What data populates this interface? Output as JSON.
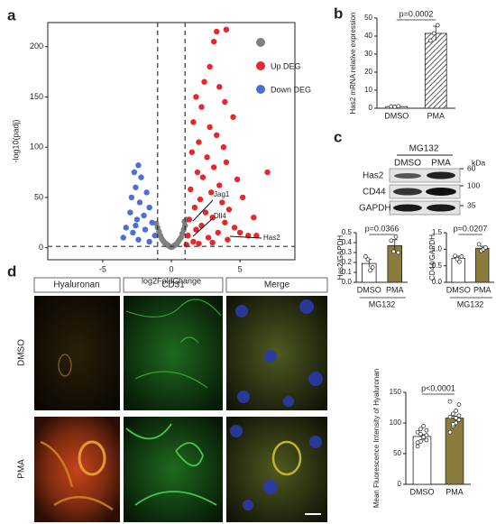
{
  "panel_labels": [
    "a",
    "b",
    "c",
    "d"
  ],
  "chart_data": [
    {
      "type": "scatter",
      "xlabel": "log2FoldChange",
      "ylabel": "-log10(padj)",
      "xlim": [
        -9,
        9
      ],
      "ylim": [
        -12,
        224
      ],
      "xticks": [
        -5,
        0,
        5
      ],
      "yticks": [
        0,
        50,
        100,
        150,
        200
      ],
      "thresholds": {
        "x": [
          -1,
          1
        ],
        "y": 1.3
      },
      "annotations": [
        "Jag1",
        "Dll4",
        "Has2"
      ],
      "series": [
        {
          "color": "#808080",
          "x": [
            -1.0,
            -0.8,
            -0.6,
            -0.4,
            -0.2,
            0,
            0.2,
            0.4,
            0.6,
            0.8,
            1.0,
            -0.9,
            0.9,
            -0.5,
            0.5,
            0.1,
            -0.1,
            0.3,
            -0.3,
            0.7,
            -0.7,
            1.1,
            -1.1,
            0.95
          ],
          "values": [
            20,
            12,
            7,
            4,
            2,
            0.5,
            2,
            4,
            8,
            14,
            22,
            16,
            18,
            5,
            6,
            1,
            1,
            3,
            3,
            10,
            9,
            28,
            24,
            26
          ]
        },
        {
          "name": "Up DEG",
          "color": "#e8262b",
          "x": [
            3.3,
            4.0,
            3.1,
            2.8,
            2.4,
            3.5,
            1.8,
            3.9,
            2.2,
            4.5,
            1.6,
            2.8,
            3.3,
            2.0,
            3.8,
            1.5,
            2.6,
            4.0,
            3.1,
            1.9,
            7.0,
            2.3,
            4.8,
            3.5,
            1.4,
            2.9,
            5.2,
            2.1,
            3.7,
            1.7,
            4.2,
            2.5,
            3.0,
            6.0,
            1.3,
            3.9,
            2.2,
            4.6,
            1.8,
            3.4,
            5.0,
            5.6,
            6.2,
            1.2,
            2.7,
            4.1,
            1.6,
            3.0,
            2.0,
            1.1
          ],
          "values": [
            215,
            217,
            205,
            180,
            165,
            160,
            150,
            145,
            140,
            130,
            125,
            120,
            112,
            105,
            100,
            95,
            90,
            85,
            80,
            75,
            75,
            70,
            68,
            62,
            58,
            55,
            50,
            48,
            45,
            40,
            38,
            35,
            30,
            30,
            28,
            25,
            22,
            20,
            18,
            15,
            15,
            12,
            12,
            12,
            10,
            8,
            6,
            5,
            4,
            3
          ]
        },
        {
          "name": "Down DEG",
          "color": "#4a6fd8",
          "x": [
            -2.4,
            -2.7,
            -2.2,
            -2.6,
            -1.8,
            -2.9,
            -2.3,
            -1.6,
            -3.0,
            -2.0,
            -2.5,
            -1.4,
            -3.3,
            -1.9,
            -2.8,
            -1.2,
            -3.5,
            -2.4,
            -1.6,
            -2.6
          ],
          "values": [
            82,
            75,
            70,
            60,
            55,
            50,
            45,
            40,
            35,
            32,
            28,
            25,
            20,
            18,
            15,
            12,
            10,
            8,
            6,
            22
          ]
        }
      ]
    },
    {
      "type": "bar",
      "ylabel": "Has2 mRNA relative expression",
      "annotation": "p=0.0002",
      "categories": [
        "DMSO",
        "PMA"
      ],
      "values": [
        0.9,
        41.5
      ],
      "errors": [
        0.2,
        4
      ],
      "points": [
        [
          1.0,
          0.8,
          1.1
        ],
        [
          37.5,
          41.5,
          46
        ]
      ],
      "colors": [
        "#ffffff",
        "#ffffff"
      ],
      "hatch": [
        false,
        true
      ],
      "ylim": [
        0,
        50
      ],
      "yticks": [
        0,
        10,
        20,
        30,
        40,
        50
      ]
    },
    {
      "type": "bar",
      "ylabel": "Has2/GAPDH",
      "annotation": "p=0.0366",
      "group_label": "MG132",
      "categories": [
        "DMSO",
        "PMA"
      ],
      "values": [
        0.19,
        0.37
      ],
      "errors": [
        0.04,
        0.06
      ],
      "points": [
        [
          0.26,
          0.23,
          0.12,
          0.15
        ],
        [
          0.42,
          0.31,
          0.46,
          0.3
        ]
      ],
      "colors": [
        "#ffffff",
        "#8b7b3c"
      ],
      "hatch": [
        false,
        false
      ],
      "ylim": [
        0,
        0.5
      ],
      "yticks": [
        {
          "value": 0,
          "label": "0.0"
        },
        0.1,
        0.2,
        0.3,
        0.4,
        0.5
      ]
    },
    {
      "type": "bar",
      "ylabel": "CD44/GAPDH",
      "annotation": "p=0.0207",
      "group_label": "MG132",
      "categories": [
        "DMSO",
        "PMA"
      ],
      "values": [
        0.73,
        1.03
      ],
      "errors": [
        0.06,
        0.06
      ],
      "points": [
        [
          0.8,
          0.7,
          0.62,
          0.78
        ],
        [
          1.15,
          0.95,
          1.0,
          1.05
        ]
      ],
      "colors": [
        "#ffffff",
        "#8b7b3c"
      ],
      "hatch": [
        false,
        false
      ],
      "ylim": [
        0,
        1.5
      ],
      "yticks": [
        {
          "value": 0,
          "label": "0.0"
        },
        0.5,
        {
          "value": 1,
          "label": "1.0"
        },
        1.5
      ]
    },
    {
      "type": "bar",
      "ylabel": "Mean Fluorescence Intensity of Hyaluronan",
      "annotation": "p<0.0001",
      "categories": [
        "DMSO",
        "PMA"
      ],
      "values": [
        78,
        108
      ],
      "errors": [
        3,
        3
      ],
      "points": [
        [
          62,
          70,
          75,
          80,
          85,
          90,
          95,
          72,
          68,
          82,
          77,
          88
        ],
        [
          85,
          95,
          100,
          105,
          110,
          115,
          120,
          130,
          135,
          98,
          108,
          112
        ]
      ],
      "colors": [
        "#ffffff",
        "#8b7b3c"
      ],
      "hatch": [
        false,
        false
      ],
      "ylim": [
        0,
        150
      ],
      "yticks": [
        0,
        50,
        100,
        150
      ]
    }
  ],
  "blot": {
    "treatment": "MG132",
    "lanes": [
      "DMSO",
      "PMA"
    ],
    "unit": "kDa",
    "rows": [
      {
        "protein": "Has2",
        "kda": 60
      },
      {
        "protein": "CD44",
        "kda": 100
      },
      {
        "protein": "GAPDH",
        "kda": 35
      }
    ]
  },
  "images": {
    "columns": [
      "Hyaluronan",
      "CD31",
      "Merge"
    ],
    "rows": [
      "DMSO",
      "PMA"
    ]
  }
}
